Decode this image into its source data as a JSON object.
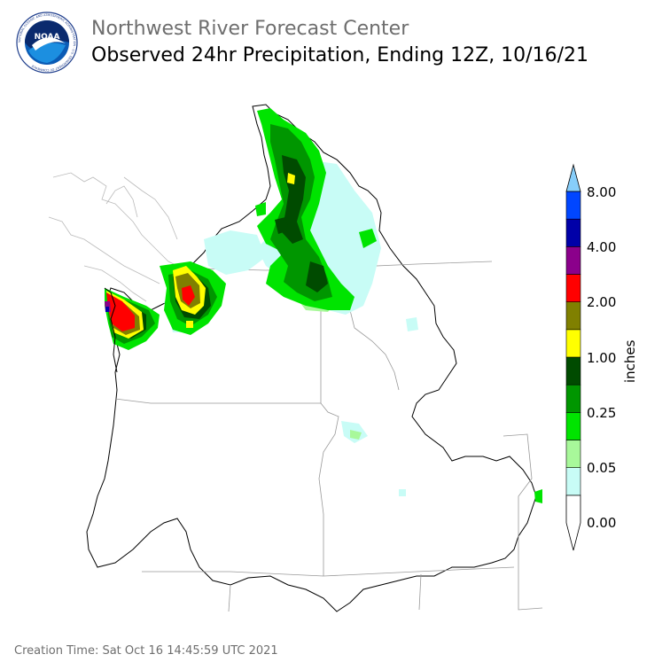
{
  "header": {
    "org_title": "Northwest River Forecast Center",
    "product_title": "Observed 24hr Precipitation, Ending 12Z, 10/16/21"
  },
  "logo": {
    "text": "NOAA",
    "ring_text": "NATIONAL OCEANIC AND ATMOSPHERIC ADMINISTRATION · U.S. DEPARTMENT OF COMMERCE"
  },
  "legend": {
    "unit_label": "inches",
    "tick_labels": [
      "8.00",
      "4.00",
      "2.00",
      "1.00",
      "0.25",
      "0.05",
      "0.00"
    ],
    "bins": [
      {
        "color": "#ffffff"
      },
      {
        "color": "#c8fcf6"
      },
      {
        "color": "#a8f89a"
      },
      {
        "color": "#00e400"
      },
      {
        "color": "#009600"
      },
      {
        "color": "#004b00"
      },
      {
        "color": "#ffff00"
      },
      {
        "color": "#808000"
      },
      {
        "color": "#ff0000"
      },
      {
        "color": "#8b008b"
      },
      {
        "color": "#0000a8"
      },
      {
        "color": "#0046ff"
      },
      {
        "color": "#87cefa"
      }
    ]
  },
  "footer": {
    "creation_time": "Creation Time: Sat Oct 16 14:45:59 UTC 2021"
  }
}
